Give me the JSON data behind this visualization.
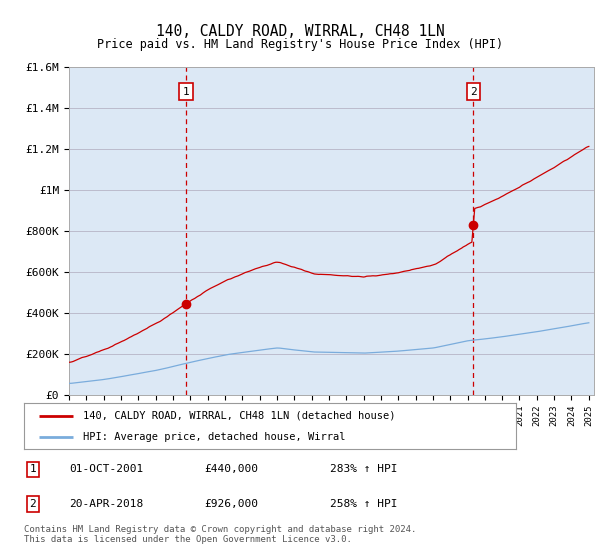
{
  "title": "140, CALDY ROAD, WIRRAL, CH48 1LN",
  "subtitle": "Price paid vs. HM Land Registry's House Price Index (HPI)",
  "ylim": [
    0,
    1600000
  ],
  "yticks": [
    0,
    200000,
    400000,
    600000,
    800000,
    1000000,
    1200000,
    1400000,
    1600000
  ],
  "ytick_labels": [
    "£0",
    "£200K",
    "£400K",
    "£600K",
    "£800K",
    "£1M",
    "£1.2M",
    "£1.4M",
    "£1.6M"
  ],
  "line1_color": "#cc0000",
  "line2_color": "#7aacdc",
  "vline_color": "#cc0000",
  "sale1_year": 2001.75,
  "sale2_year": 2018.33,
  "sale1_price": 440000,
  "sale2_price": 926000,
  "legend_line1": "140, CALDY ROAD, WIRRAL, CH48 1LN (detached house)",
  "legend_line2": "HPI: Average price, detached house, Wirral",
  "table_rows": [
    {
      "num": "1",
      "date": "01-OCT-2001",
      "price": "£440,000",
      "change": "283% ↑ HPI"
    },
    {
      "num": "2",
      "date": "20-APR-2018",
      "price": "£926,000",
      "change": "258% ↑ HPI"
    }
  ],
  "footnote": "Contains HM Land Registry data © Crown copyright and database right 2024.\nThis data is licensed under the Open Government Licence v3.0.",
  "background_color": "#ffffff",
  "plot_bg_color": "#dce8f5",
  "grid_color": "#bbbbcc"
}
